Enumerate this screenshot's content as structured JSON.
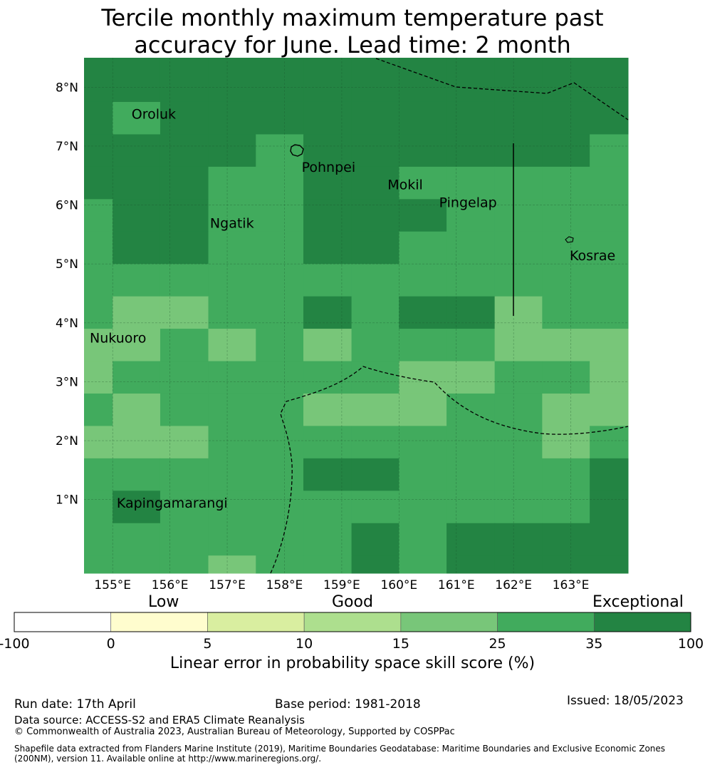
{
  "title_line1": "Tercile monthly maximum temperature past",
  "title_line2": "accuracy for June. Lead time: 2 month",
  "map": {
    "lon_min": 154.5,
    "lon_max": 164.0,
    "lat_min": -0.25,
    "lat_max": 8.5,
    "lon_ticks": [
      155,
      156,
      157,
      158,
      159,
      160,
      161,
      162,
      163
    ],
    "lon_tick_labels": [
      "155°E",
      "156°E",
      "157°E",
      "158°E",
      "159°E",
      "160°E",
      "161°E",
      "162°E",
      "163°E"
    ],
    "lat_ticks": [
      1,
      2,
      3,
      4,
      5,
      6,
      7,
      8
    ],
    "lat_tick_labels": [
      "1°N",
      "2°N",
      "3°N",
      "4°N",
      "5°N",
      "6°N",
      "7°N",
      "8°N"
    ],
    "grid_lon_edges": [
      154.5,
      155.0,
      155.83,
      156.67,
      157.5,
      158.33,
      159.17,
      160.0,
      160.83,
      161.67,
      162.5,
      163.33,
      164.0
    ],
    "grid_lat_edges_top_down": [
      8.5,
      7.75,
      7.2,
      6.65,
      6.1,
      5.55,
      5.0,
      4.45,
      3.9,
      3.35,
      2.8,
      2.25,
      1.7,
      1.15,
      0.6,
      0.05,
      -0.25
    ],
    "grid_classes": [
      [
        6,
        6,
        6,
        6,
        6,
        6,
        6,
        6,
        6,
        6,
        6,
        6
      ],
      [
        6,
        5,
        6,
        6,
        6,
        6,
        6,
        6,
        6,
        6,
        6,
        6
      ],
      [
        6,
        6,
        6,
        6,
        5,
        6,
        6,
        6,
        6,
        6,
        6,
        5
      ],
      [
        6,
        6,
        6,
        5,
        5,
        6,
        6,
        5,
        5,
        5,
        5,
        5
      ],
      [
        5,
        6,
        6,
        5,
        5,
        6,
        6,
        6,
        5,
        5,
        5,
        5
      ],
      [
        5,
        6,
        6,
        5,
        5,
        6,
        6,
        5,
        5,
        5,
        5,
        5
      ],
      [
        5,
        5,
        5,
        5,
        5,
        5,
        5,
        5,
        5,
        5,
        5,
        5
      ],
      [
        5,
        4,
        4,
        5,
        5,
        6,
        5,
        6,
        6,
        4,
        5,
        5
      ],
      [
        4,
        4,
        5,
        4,
        5,
        4,
        5,
        5,
        5,
        4,
        4,
        4
      ],
      [
        4,
        5,
        5,
        5,
        5,
        5,
        5,
        4,
        4,
        5,
        5,
        4
      ],
      [
        5,
        4,
        5,
        5,
        5,
        4,
        4,
        4,
        5,
        5,
        4,
        4
      ],
      [
        4,
        4,
        4,
        5,
        5,
        5,
        5,
        5,
        5,
        5,
        4,
        5
      ],
      [
        5,
        5,
        5,
        5,
        5,
        6,
        6,
        5,
        5,
        5,
        5,
        6
      ],
      [
        5,
        6,
        5,
        5,
        5,
        5,
        5,
        5,
        5,
        5,
        5,
        6
      ],
      [
        5,
        5,
        5,
        5,
        5,
        5,
        6,
        5,
        6,
        6,
        6,
        6
      ],
      [
        5,
        5,
        5,
        4,
        5,
        5,
        6,
        5,
        6,
        6,
        6,
        6
      ]
    ],
    "islands": [
      {
        "name": "Oroluk",
        "lon": 155.33,
        "lat": 7.55
      },
      {
        "name": "Pohnpei",
        "lon": 158.3,
        "lat": 6.65
      },
      {
        "name": "Mokil",
        "lon": 159.8,
        "lat": 6.35
      },
      {
        "name": "Pingelap",
        "lon": 160.7,
        "lat": 6.05
      },
      {
        "name": "Ngatik",
        "lon": 156.7,
        "lat": 5.7
      },
      {
        "name": "Kosrae",
        "lon": 162.98,
        "lat": 5.15
      },
      {
        "name": "Nukuoro",
        "lon": 154.6,
        "lat": 3.75
      },
      {
        "name": "Kapingamarangi",
        "lon": 155.07,
        "lat": 0.95
      }
    ]
  },
  "colorbar": {
    "headings": [
      "Low",
      "Good",
      "Exceptional"
    ],
    "ticks": [
      "-100",
      "0",
      "5",
      "10",
      "15",
      "25",
      "35",
      "100"
    ],
    "colors": [
      "#ffffff",
      "#fffdce",
      "#d9eea0",
      "#addf8e",
      "#78c679",
      "#41ab5d",
      "#238443"
    ],
    "label": "Linear error in probability space skill score (%)"
  },
  "footer": {
    "run_date": "Run date: 17th April",
    "base_period": "Base period: 1981-2018",
    "issued": "Issued: 18/05/2023",
    "data_source": "Data source: ACCESS-S2 and ERA5 Climate Reanalysis",
    "copyright": "© Commonwealth of Australia 2023, Australian Bureau of Meteorology, Supported by COSPPac",
    "shapefile_line1": "Shapefile data extracted from Flanders Marine Institute (2019), Maritime Boundaries Geodatabase: Maritime Boundaries and Exclusive Economic Zones",
    "shapefile_line2": "(200NM), version 11. Available online at http://www.marineregions.org/."
  }
}
